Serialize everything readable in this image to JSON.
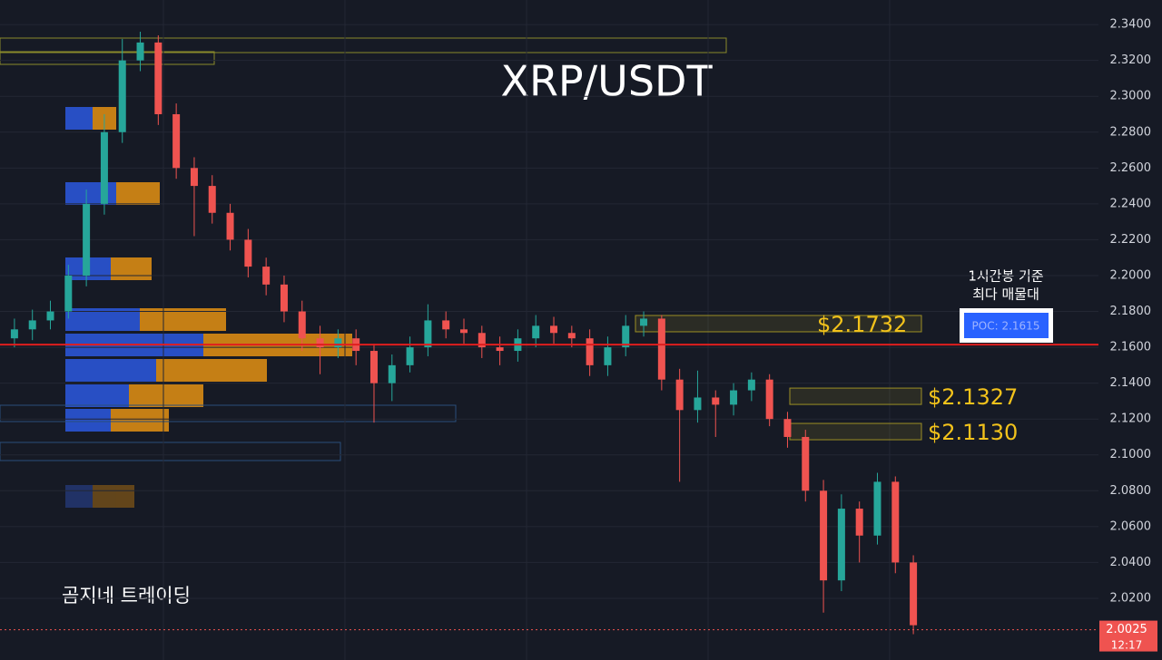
{
  "chart_data": {
    "type": "candlestick",
    "title": "XRP/USDT",
    "annotation_lines": [
      "1시간봉 기준",
      "최다 매물대"
    ],
    "watermark": "곰지네 트레이딩",
    "poc": {
      "value": 2.1615,
      "label": "POC: 2.1615",
      "color": "#e01e1e"
    },
    "levels": [
      {
        "value": 2.1732,
        "label": "$2.1732"
      },
      {
        "value": 2.1327,
        "label": "$2.1327"
      },
      {
        "value": 2.113,
        "label": "$2.1130"
      }
    ],
    "last_price": 2.0025,
    "countdown": "12:17",
    "up_color": "#26a69a",
    "down_color": "#ef5350",
    "ylim": [
      1.9856,
      2.3537
    ],
    "yticks": [
      {
        "value": 2.34,
        "label": "2.3400"
      },
      {
        "value": 2.32,
        "label": "2.3200"
      },
      {
        "value": 2.3,
        "label": "2.3000"
      },
      {
        "value": 2.28,
        "label": "2.2800"
      },
      {
        "value": 2.26,
        "label": "2.2600"
      },
      {
        "value": 2.24,
        "label": "2.2400"
      },
      {
        "value": 2.22,
        "label": "2.2200"
      },
      {
        "value": 2.2,
        "label": "2.2000"
      },
      {
        "value": 2.18,
        "label": "2.1800"
      },
      {
        "value": 2.16,
        "label": "2.1600"
      },
      {
        "value": 2.14,
        "label": "2.1400"
      },
      {
        "value": 2.12,
        "label": "2.1200"
      },
      {
        "value": 2.1,
        "label": "2.1000"
      },
      {
        "value": 2.08,
        "label": "2.0800"
      },
      {
        "value": 2.06,
        "label": "2.0600"
      },
      {
        "value": 2.04,
        "label": "2.0400"
      },
      {
        "value": 2.02,
        "label": "2.0200"
      }
    ],
    "grid": true,
    "open": [
      2.165,
      2.17,
      2.175,
      2.18,
      2.2,
      2.24,
      2.28,
      2.32,
      2.33,
      2.29,
      2.26,
      2.25,
      2.235,
      2.22,
      2.205,
      2.195,
      2.18,
      2.165,
      2.16,
      2.165,
      2.158,
      2.14,
      2.15,
      2.16,
      2.175,
      2.17,
      2.168,
      2.16,
      2.158,
      2.165,
      2.172,
      2.168,
      2.165,
      2.15,
      2.16,
      2.172,
      2.176,
      2.142,
      2.125,
      2.132,
      2.128,
      2.136,
      2.142,
      2.12,
      2.11,
      2.08,
      2.03,
      2.07,
      2.055,
      2.085,
      2.04
    ],
    "high": [
      2.176,
      2.181,
      2.186,
      2.206,
      2.248,
      2.29,
      2.332,
      2.336,
      2.334,
      2.296,
      2.266,
      2.256,
      2.24,
      2.226,
      2.21,
      2.2,
      2.186,
      2.172,
      2.17,
      2.17,
      2.162,
      2.156,
      2.166,
      2.184,
      2.18,
      2.176,
      2.172,
      2.166,
      2.17,
      2.178,
      2.177,
      2.172,
      2.17,
      2.166,
      2.178,
      2.18,
      2.178,
      2.148,
      2.147,
      2.136,
      2.14,
      2.146,
      2.145,
      2.124,
      2.114,
      2.086,
      2.078,
      2.074,
      2.09,
      2.088,
      2.044
    ],
    "low": [
      2.16,
      2.164,
      2.17,
      2.176,
      2.194,
      2.234,
      2.274,
      2.314,
      2.284,
      2.254,
      2.222,
      2.229,
      2.214,
      2.199,
      2.189,
      2.174,
      2.158,
      2.145,
      2.154,
      2.15,
      2.118,
      2.13,
      2.146,
      2.155,
      2.165,
      2.162,
      2.154,
      2.15,
      2.152,
      2.16,
      2.162,
      2.16,
      2.144,
      2.144,
      2.155,
      2.166,
      2.136,
      2.085,
      2.118,
      2.11,
      2.122,
      2.13,
      2.116,
      2.104,
      2.074,
      2.012,
      2.024,
      2.04,
      2.05,
      2.034,
      2.0
    ],
    "close": [
      2.17,
      2.175,
      2.18,
      2.2,
      2.24,
      2.28,
      2.32,
      2.33,
      2.29,
      2.26,
      2.25,
      2.235,
      2.22,
      2.205,
      2.195,
      2.18,
      2.165,
      2.16,
      2.165,
      2.158,
      2.14,
      2.15,
      2.16,
      2.175,
      2.17,
      2.168,
      2.16,
      2.158,
      2.165,
      2.172,
      2.168,
      2.165,
      2.15,
      2.16,
      2.172,
      2.176,
      2.142,
      2.125,
      2.132,
      2.128,
      2.136,
      2.142,
      2.12,
      2.11,
      2.08,
      2.03,
      2.07,
      2.055,
      2.085,
      2.04,
      2.005
    ]
  }
}
